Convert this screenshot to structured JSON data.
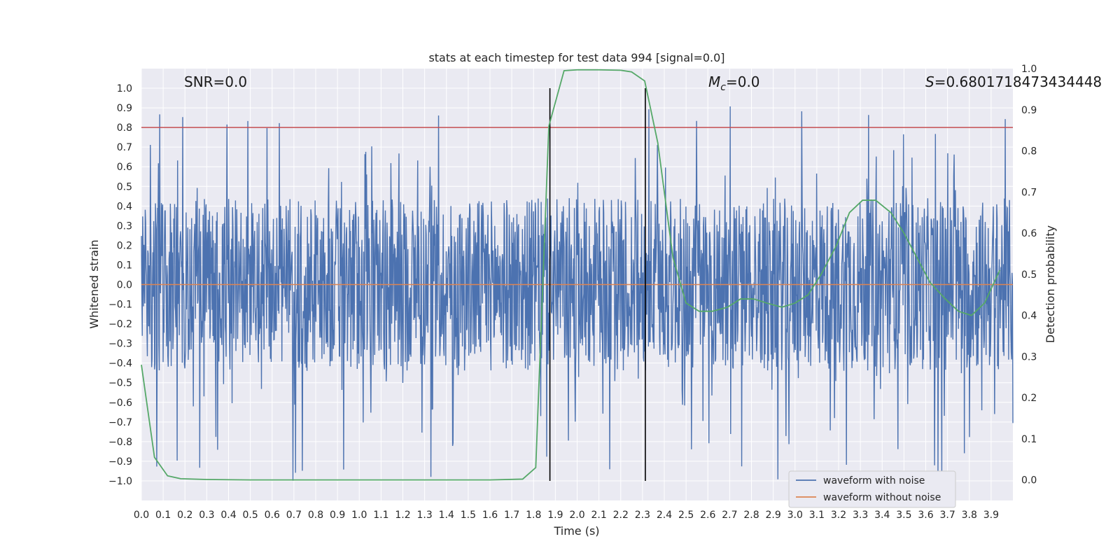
{
  "chart_data": {
    "type": "line",
    "title": "stats at each timestep for test data 994 [signal=0.0]",
    "xlabel": "Time (s)",
    "ylabel": "Whitened strain",
    "y2label": "Detection probability",
    "xlim": [
      0.0,
      4.0
    ],
    "ylim": [
      -1.1,
      1.1
    ],
    "y2lim": [
      -0.05,
      1.0
    ],
    "xticks": [
      "0.0",
      "0.1",
      "0.2",
      "0.3",
      "0.4",
      "0.5",
      "0.6",
      "0.7",
      "0.8",
      "0.9",
      "1.0",
      "1.1",
      "1.2",
      "1.3",
      "1.4",
      "1.5",
      "1.6",
      "1.7",
      "1.8",
      "1.9",
      "2.0",
      "2.1",
      "2.2",
      "2.3",
      "2.4",
      "2.5",
      "2.6",
      "2.7",
      "2.8",
      "2.9",
      "3.0",
      "3.1",
      "3.2",
      "3.3",
      "3.4",
      "3.5",
      "3.6",
      "3.7",
      "3.8",
      "3.9"
    ],
    "yticks": [
      "1.0",
      "0.9",
      "0.8",
      "0.7",
      "0.6",
      "0.5",
      "0.4",
      "0.3",
      "0.2",
      "0.1",
      "0.0",
      "−0.1",
      "−0.2",
      "−0.3",
      "−0.4",
      "−0.5",
      "−0.6",
      "−0.7",
      "−0.8",
      "−0.9",
      "−1.0"
    ],
    "y2ticks": [
      "0.0",
      "0.1",
      "0.2",
      "0.3",
      "0.4",
      "0.5",
      "0.6",
      "0.7",
      "0.8",
      "0.9",
      "1.0"
    ],
    "grid": true,
    "legend_position": "lower-right",
    "annotations": {
      "snr": "SNR=0.0",
      "mc": "=0.0",
      "mc_symbol": "M",
      "mc_sub": "c",
      "s": "=0.6801718473434448",
      "s_symbol": "S"
    },
    "threshold_line": {
      "y": 0.8,
      "color": "#c44e52"
    },
    "vertical_lines": [
      1.875,
      2.313
    ],
    "series": [
      {
        "name": "waveform with noise",
        "color": "#4c72b0",
        "envelope": {
          "typical_max": 0.4,
          "peak_max": 0.93,
          "typical_min": -0.45,
          "peak_min": -1.0
        }
      },
      {
        "name": "waveform without noise",
        "color": "#dd8452",
        "values": [
          0.0,
          0.0
        ]
      },
      {
        "color": "#55a868",
        "axis": "secondary",
        "x": [
          0.0,
          0.06,
          0.12,
          0.18,
          0.3,
          0.5,
          0.8,
          1.0,
          1.3,
          1.6,
          1.75,
          1.81,
          1.87,
          1.94,
          2.0,
          2.1,
          2.2,
          2.25,
          2.31,
          2.37,
          2.44,
          2.5,
          2.56,
          2.62,
          2.69,
          2.75,
          2.81,
          2.87,
          2.94,
          3.0,
          3.06,
          3.12,
          3.19,
          3.25,
          3.31,
          3.37,
          3.44,
          3.5,
          3.56,
          3.62,
          3.69,
          3.75,
          3.81,
          3.87,
          3.94
        ],
        "y": [
          0.28,
          0.055,
          0.01,
          0.003,
          0.001,
          0.0,
          0.0,
          0.0,
          0.0,
          0.0,
          0.002,
          0.03,
          0.86,
          0.995,
          0.997,
          0.997,
          0.996,
          0.992,
          0.97,
          0.82,
          0.54,
          0.43,
          0.41,
          0.41,
          0.42,
          0.44,
          0.44,
          0.43,
          0.42,
          0.43,
          0.45,
          0.5,
          0.57,
          0.65,
          0.68,
          0.68,
          0.65,
          0.6,
          0.54,
          0.48,
          0.44,
          0.41,
          0.4,
          0.43,
          0.51
        ]
      }
    ]
  }
}
